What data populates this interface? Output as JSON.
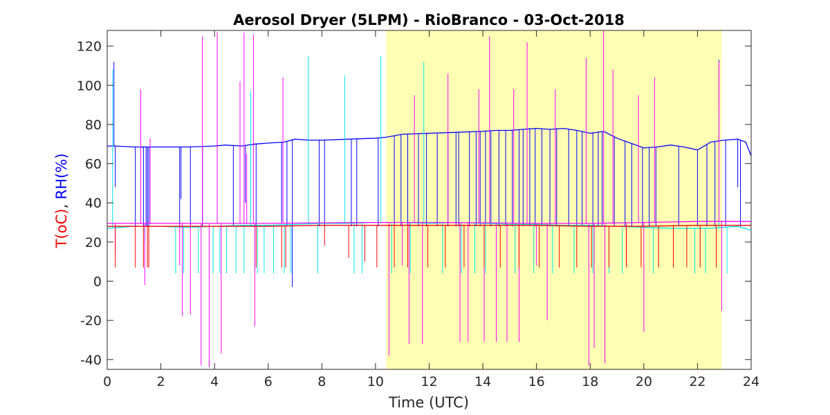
{
  "chart_data": {
    "type": "line",
    "title": "Aerosol Dryer (5LPM) - RioBranco - 03-Oct-2018",
    "xlabel": "Time (UTC)",
    "ylabel": {
      "parts": [
        {
          "text": "T(oC)",
          "color": "#ff0000"
        },
        {
          "text": ", ",
          "color": "#262626"
        },
        {
          "text": "RH(%)",
          "color": "#0000ff"
        }
      ]
    },
    "xlim": [
      0,
      24
    ],
    "ylim": [
      -45,
      128
    ],
    "xticks": [
      0,
      2,
      4,
      6,
      8,
      10,
      12,
      14,
      16,
      18,
      20,
      22,
      24
    ],
    "yticks": [
      -40,
      -20,
      0,
      20,
      40,
      60,
      80,
      100,
      120
    ],
    "grid": false,
    "legend": null,
    "daylight_shading": {
      "x_start": 10.4,
      "x_end": 22.9,
      "color": "#ffffb3"
    },
    "series": [
      {
        "color": "#0000ff",
        "values_description_free": true,
        "x": [
          0.0,
          0.3,
          1.0,
          2.0,
          3.0,
          4.0,
          4.4,
          5.0,
          5.5,
          6.0,
          6.6,
          7.0,
          7.5,
          8.0,
          9.0,
          10.0,
          10.4,
          11.0,
          12.0,
          13.0,
          14.0,
          14.5,
          15.0,
          15.5,
          16.0,
          16.5,
          17.0,
          17.5,
          18.0,
          18.5,
          19.0,
          19.5,
          20.0,
          20.5,
          21.0,
          21.5,
          22.0,
          22.5,
          23.0,
          23.5,
          23.8,
          24.0
        ],
        "y": [
          69,
          69,
          68.5,
          68.5,
          68.5,
          69,
          69.5,
          69,
          70,
          70.5,
          71,
          72.5,
          72,
          72,
          72.5,
          73,
          73.5,
          75,
          75.5,
          76,
          76.5,
          77,
          77,
          77.5,
          78,
          77.5,
          78,
          77,
          75.5,
          76.5,
          73,
          70.5,
          68,
          68.5,
          69.5,
          68.5,
          67,
          71,
          72,
          72.5,
          71,
          64
        ],
        "spikes": [
          {
            "x": 0.25,
            "y": 112
          },
          {
            "x": 0.3,
            "y": 48
          },
          {
            "x": 1.05,
            "y": 28
          },
          {
            "x": 1.3,
            "y": 68
          },
          {
            "x": 1.35,
            "y": 28
          },
          {
            "x": 1.45,
            "y": 28
          },
          {
            "x": 1.5,
            "y": 28
          },
          {
            "x": 1.55,
            "y": 28
          },
          {
            "x": 2.7,
            "y": 28
          },
          {
            "x": 2.75,
            "y": 42
          },
          {
            "x": 3.1,
            "y": 28
          },
          {
            "x": 3.55,
            "y": 28
          },
          {
            "x": 4.7,
            "y": 28
          },
          {
            "x": 5.15,
            "y": 40
          },
          {
            "x": 5.55,
            "y": 28
          },
          {
            "x": 6.5,
            "y": 30
          },
          {
            "x": 6.7,
            "y": 28
          },
          {
            "x": 6.9,
            "y": -3
          },
          {
            "x": 7.9,
            "y": 28
          },
          {
            "x": 8.1,
            "y": 28
          },
          {
            "x": 9.1,
            "y": 28
          },
          {
            "x": 9.3,
            "y": 28
          },
          {
            "x": 10.1,
            "y": 28
          },
          {
            "x": 10.7,
            "y": 28
          },
          {
            "x": 10.95,
            "y": 28
          },
          {
            "x": 11.2,
            "y": 28
          },
          {
            "x": 11.6,
            "y": 28
          },
          {
            "x": 11.9,
            "y": 28
          },
          {
            "x": 12.3,
            "y": 28
          },
          {
            "x": 12.7,
            "y": 28
          },
          {
            "x": 13.0,
            "y": 28
          },
          {
            "x": 13.1,
            "y": 28
          },
          {
            "x": 13.5,
            "y": 28
          },
          {
            "x": 13.75,
            "y": 28
          },
          {
            "x": 13.9,
            "y": 28
          },
          {
            "x": 14.1,
            "y": 28
          },
          {
            "x": 14.3,
            "y": 28
          },
          {
            "x": 14.6,
            "y": 28
          },
          {
            "x": 14.85,
            "y": 28
          },
          {
            "x": 15.1,
            "y": 28
          },
          {
            "x": 15.35,
            "y": 28
          },
          {
            "x": 15.5,
            "y": 28
          },
          {
            "x": 15.75,
            "y": 28
          },
          {
            "x": 15.95,
            "y": 28
          },
          {
            "x": 16.2,
            "y": 28
          },
          {
            "x": 16.5,
            "y": 28
          },
          {
            "x": 16.75,
            "y": 28
          },
          {
            "x": 17.2,
            "y": 28
          },
          {
            "x": 17.5,
            "y": 28
          },
          {
            "x": 17.7,
            "y": 28
          },
          {
            "x": 18.1,
            "y": 28
          },
          {
            "x": 18.3,
            "y": 28
          },
          {
            "x": 18.45,
            "y": 28
          },
          {
            "x": 18.9,
            "y": 28
          },
          {
            "x": 19.3,
            "y": 28
          },
          {
            "x": 19.55,
            "y": 28
          },
          {
            "x": 19.95,
            "y": 28
          },
          {
            "x": 20.2,
            "y": 28
          },
          {
            "x": 20.45,
            "y": 28
          },
          {
            "x": 21.3,
            "y": 28
          },
          {
            "x": 22.0,
            "y": 28
          },
          {
            "x": 22.35,
            "y": 28
          },
          {
            "x": 22.65,
            "y": 28
          },
          {
            "x": 22.8,
            "y": 113
          },
          {
            "x": 23.05,
            "y": 28
          },
          {
            "x": 23.5,
            "y": 48
          },
          {
            "x": 23.6,
            "y": 28
          }
        ]
      },
      {
        "color": "#00e5e5",
        "x": [
          0.0,
          1.0,
          2.0,
          3.0,
          4.0,
          5.0,
          6.0,
          7.0,
          8.0,
          9.0,
          10.0,
          11.0,
          12.0,
          13.0,
          14.0,
          15.0,
          16.0,
          17.0,
          18.0,
          19.0,
          20.0,
          21.0,
          22.0,
          22.5,
          23.0,
          23.5,
          24.0
        ],
        "y": [
          27,
          28,
          28,
          27.5,
          28,
          28.5,
          28.5,
          29,
          29.5,
          29.5,
          30,
          30,
          29.5,
          30,
          29.5,
          29,
          29,
          28.5,
          28.5,
          28,
          27.5,
          27,
          27,
          27,
          27.5,
          28,
          26
        ],
        "spikes": [
          {
            "x": 0.2,
            "y": 108
          },
          {
            "x": 1.4,
            "y": 20
          },
          {
            "x": 2.55,
            "y": 4
          },
          {
            "x": 2.85,
            "y": 4
          },
          {
            "x": 3.4,
            "y": 4
          },
          {
            "x": 3.95,
            "y": 4
          },
          {
            "x": 4.2,
            "y": 4
          },
          {
            "x": 4.45,
            "y": 4
          },
          {
            "x": 4.8,
            "y": 4
          },
          {
            "x": 5.1,
            "y": 4
          },
          {
            "x": 5.35,
            "y": 97
          },
          {
            "x": 5.6,
            "y": 4
          },
          {
            "x": 5.85,
            "y": 4
          },
          {
            "x": 6.2,
            "y": 4
          },
          {
            "x": 6.6,
            "y": 4
          },
          {
            "x": 6.85,
            "y": 4
          },
          {
            "x": 7.5,
            "y": 115
          },
          {
            "x": 7.85,
            "y": 4
          },
          {
            "x": 8.85,
            "y": 105
          },
          {
            "x": 9.2,
            "y": 4
          },
          {
            "x": 9.5,
            "y": 4
          },
          {
            "x": 10.2,
            "y": 115
          },
          {
            "x": 10.6,
            "y": 4
          },
          {
            "x": 11.3,
            "y": 4
          },
          {
            "x": 11.8,
            "y": 112
          },
          {
            "x": 12.5,
            "y": 4
          },
          {
            "x": 13.2,
            "y": 4
          },
          {
            "x": 13.7,
            "y": 4
          },
          {
            "x": 14.1,
            "y": 4
          },
          {
            "x": 14.5,
            "y": 4
          },
          {
            "x": 15.2,
            "y": 4
          },
          {
            "x": 15.9,
            "y": 4
          },
          {
            "x": 16.6,
            "y": 4
          },
          {
            "x": 17.4,
            "y": 4
          },
          {
            "x": 18.1,
            "y": 4
          },
          {
            "x": 18.7,
            "y": 4
          },
          {
            "x": 19.2,
            "y": 4
          },
          {
            "x": 20.35,
            "y": 4
          },
          {
            "x": 21.9,
            "y": 4
          },
          {
            "x": 22.3,
            "y": 4
          },
          {
            "x": 22.8,
            "y": 88
          },
          {
            "x": 23.1,
            "y": 4
          }
        ]
      },
      {
        "color": "#ff00ff",
        "x": [
          0.0,
          2.0,
          4.0,
          6.0,
          8.0,
          10.0,
          12.0,
          14.0,
          16.0,
          18.0,
          20.0,
          22.0,
          24.0
        ],
        "y": [
          29.5,
          29.5,
          29.5,
          29.5,
          29.8,
          30,
          30,
          29.8,
          29.5,
          29.5,
          30,
          30.5,
          30.5
        ],
        "spikes": [
          {
            "x": 0.3,
            "y": 15
          },
          {
            "x": 1.25,
            "y": 98
          },
          {
            "x": 1.4,
            "y": -2
          },
          {
            "x": 1.6,
            "y": 73
          },
          {
            "x": 2.7,
            "y": 8
          },
          {
            "x": 2.8,
            "y": -18
          },
          {
            "x": 3.1,
            "y": -17
          },
          {
            "x": 3.5,
            "y": -43
          },
          {
            "x": 3.55,
            "y": 125
          },
          {
            "x": 3.8,
            "y": -44
          },
          {
            "x": 4.1,
            "y": 127
          },
          {
            "x": 4.25,
            "y": -37
          },
          {
            "x": 4.95,
            "y": 102
          },
          {
            "x": 5.1,
            "y": 127
          },
          {
            "x": 5.2,
            "y": 65
          },
          {
            "x": 5.45,
            "y": 126
          },
          {
            "x": 5.5,
            "y": -23
          },
          {
            "x": 6.55,
            "y": 104
          },
          {
            "x": 10.5,
            "y": -38
          },
          {
            "x": 11.0,
            "y": 8
          },
          {
            "x": 11.25,
            "y": -32
          },
          {
            "x": 11.45,
            "y": 95
          },
          {
            "x": 11.75,
            "y": -32
          },
          {
            "x": 12.7,
            "y": 106
          },
          {
            "x": 13.15,
            "y": -31
          },
          {
            "x": 13.45,
            "y": -31
          },
          {
            "x": 13.85,
            "y": 98
          },
          {
            "x": 14.05,
            "y": -31
          },
          {
            "x": 14.25,
            "y": 125
          },
          {
            "x": 14.5,
            "y": -31
          },
          {
            "x": 14.9,
            "y": -31
          },
          {
            "x": 15.15,
            "y": 98
          },
          {
            "x": 15.35,
            "y": -31
          },
          {
            "x": 15.65,
            "y": 122
          },
          {
            "x": 16.0,
            "y": 8
          },
          {
            "x": 16.4,
            "y": -20
          },
          {
            "x": 16.7,
            "y": 98
          },
          {
            "x": 17.85,
            "y": 114
          },
          {
            "x": 17.95,
            "y": -43
          },
          {
            "x": 18.15,
            "y": -34
          },
          {
            "x": 18.5,
            "y": 128
          },
          {
            "x": 18.55,
            "y": -42
          },
          {
            "x": 18.85,
            "y": 108
          },
          {
            "x": 19.35,
            "y": 8
          },
          {
            "x": 19.8,
            "y": 95
          },
          {
            "x": 20.0,
            "y": -26
          },
          {
            "x": 20.4,
            "y": 104
          },
          {
            "x": 22.8,
            "y": 112
          },
          {
            "x": 22.9,
            "y": -15
          }
        ]
      },
      {
        "color": "#ff0000",
        "x": [
          0.0,
          2.0,
          4.0,
          6.0,
          8.0,
          10.0,
          12.0,
          14.0,
          16.0,
          18.0,
          20.0,
          22.0,
          24.0
        ],
        "y": [
          28,
          28,
          28,
          28,
          28.5,
          28.5,
          28.5,
          28.5,
          28.5,
          28,
          28,
          28.5,
          28.5
        ],
        "spikes": [
          {
            "x": 0.3,
            "y": 7
          },
          {
            "x": 1.05,
            "y": 7
          },
          {
            "x": 1.35,
            "y": 7
          },
          {
            "x": 1.5,
            "y": 7
          },
          {
            "x": 1.55,
            "y": 7
          },
          {
            "x": 5.55,
            "y": 7
          },
          {
            "x": 6.5,
            "y": 7
          },
          {
            "x": 6.65,
            "y": 7
          },
          {
            "x": 8.1,
            "y": 18
          },
          {
            "x": 9.0,
            "y": 12
          },
          {
            "x": 9.6,
            "y": 10
          },
          {
            "x": 10.05,
            "y": 7
          },
          {
            "x": 10.7,
            "y": 7
          },
          {
            "x": 11.2,
            "y": 7
          },
          {
            "x": 11.95,
            "y": 7
          },
          {
            "x": 12.6,
            "y": 7
          },
          {
            "x": 13.3,
            "y": 7
          },
          {
            "x": 14.05,
            "y": 7
          },
          {
            "x": 14.65,
            "y": 7
          },
          {
            "x": 15.35,
            "y": 7
          },
          {
            "x": 16.1,
            "y": 7
          },
          {
            "x": 16.85,
            "y": 7
          },
          {
            "x": 17.5,
            "y": 7
          },
          {
            "x": 18.05,
            "y": 7
          },
          {
            "x": 18.7,
            "y": 7
          },
          {
            "x": 19.35,
            "y": 7
          },
          {
            "x": 19.9,
            "y": 7
          },
          {
            "x": 20.55,
            "y": 7
          },
          {
            "x": 21.1,
            "y": 7
          },
          {
            "x": 21.6,
            "y": 7
          },
          {
            "x": 22.1,
            "y": 7
          },
          {
            "x": 22.7,
            "y": 7
          }
        ]
      }
    ]
  }
}
